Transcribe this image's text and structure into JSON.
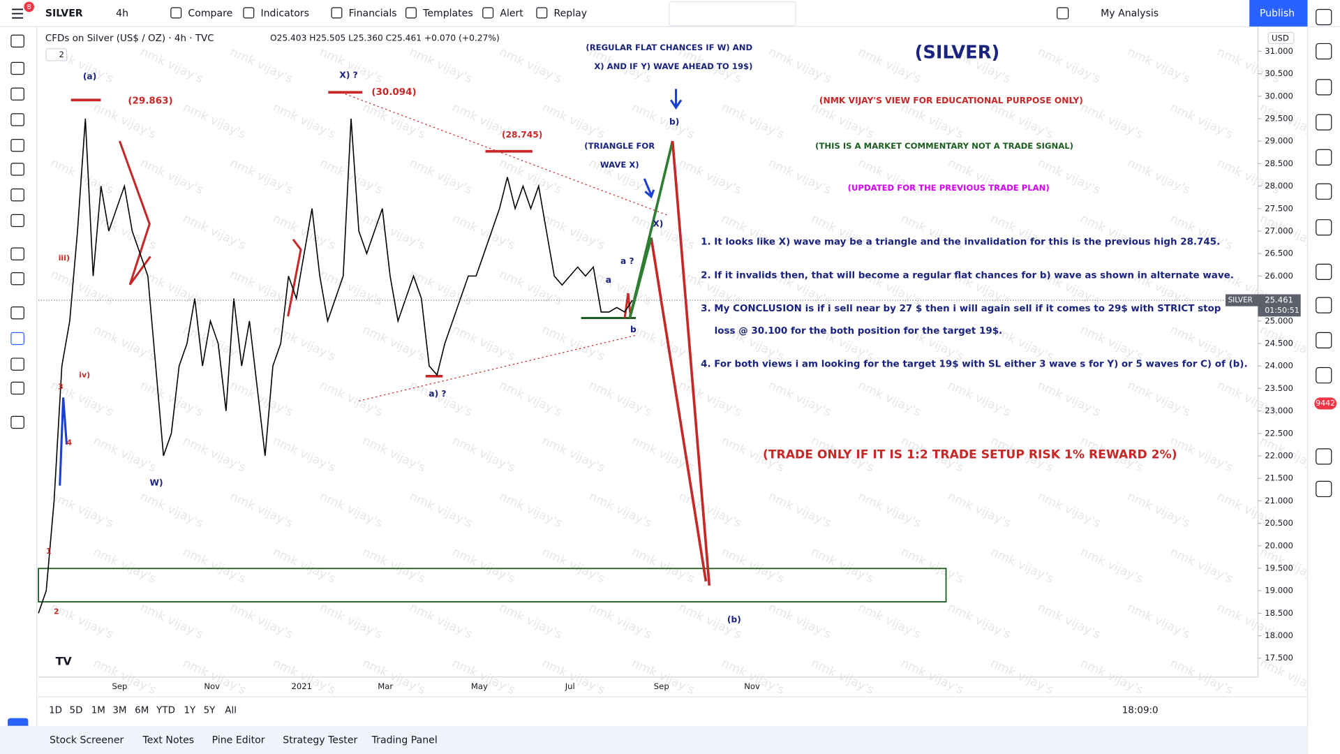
{
  "toolbar": {
    "symbol": "SILVER",
    "interval": "4h",
    "notification": "8",
    "items": [
      "Compare",
      "Indicators",
      "Financials",
      "Templates",
      "Alert",
      "Replay"
    ],
    "layout": "My Analysis",
    "publish": "Publish"
  },
  "legend": {
    "title": "CFDs on Silver (US$ / OZ) · 4h · TVC",
    "ohlc": "O25.403 H25.505 L25.360 C25.461 +0.070 (+0.27%)",
    "collapse": "2"
  },
  "chart": {
    "price": {
      "color": "#000000",
      "values": [
        18.5,
        19,
        21,
        24,
        25,
        27,
        29.5,
        26,
        28,
        27,
        27.5,
        28,
        27,
        26.5,
        26,
        24,
        22,
        22.5,
        24,
        24.5,
        25.5,
        24,
        25,
        24.5,
        23,
        25.5,
        24,
        25,
        23.5,
        22,
        24,
        24.5,
        26,
        25.5,
        26.5,
        27.5,
        26,
        25,
        25.5,
        26,
        29.5,
        27,
        26.5,
        27,
        27.5,
        26,
        25,
        25.5,
        26,
        25.5,
        24,
        23.8,
        24.5,
        25,
        25.5,
        26,
        26,
        26.5,
        27,
        27.5,
        28.2,
        27.5,
        28,
        27.5,
        28,
        27,
        26,
        25.8,
        26,
        26.2,
        26,
        26.2,
        25.2,
        25.2,
        25.3,
        25.2,
        25.461
      ]
    },
    "ylim": [
      17.08,
      31.55
    ],
    "yticks": [
      {
        "value": 17.5,
        "label": "17.500"
      },
      {
        "value": 18,
        "label": "18.000"
      },
      {
        "value": 18.5,
        "label": "18.500"
      },
      {
        "value": 19,
        "label": "19.000"
      },
      {
        "value": 19.5,
        "label": "19.500"
      },
      {
        "value": 20,
        "label": "20.000"
      },
      {
        "value": 20.5,
        "label": "20.500"
      },
      {
        "value": 21,
        "label": "21.000"
      },
      {
        "value": 21.5,
        "label": "21.500"
      },
      {
        "value": 22,
        "label": "22.000"
      },
      {
        "value": 22.5,
        "label": "22.500"
      },
      {
        "value": 23,
        "label": "23.000"
      },
      {
        "value": 23.5,
        "label": "23.500"
      },
      {
        "value": 24,
        "label": "24.000"
      },
      {
        "value": 24.5,
        "label": "24.500"
      },
      {
        "value": 25,
        "label": "25.000"
      },
      {
        "value": 25.5,
        "label": "25.500"
      },
      {
        "value": 26,
        "label": "26.000"
      },
      {
        "value": 26.5,
        "label": "26.500"
      },
      {
        "value": 27,
        "label": "27.000"
      },
      {
        "value": 27.5,
        "label": "27.500"
      },
      {
        "value": 28,
        "label": "28.000"
      },
      {
        "value": 28.5,
        "label": "28.500"
      },
      {
        "value": 29,
        "label": "29.000"
      },
      {
        "value": 29.5,
        "label": "29.500"
      },
      {
        "value": 30,
        "label": "30.000"
      },
      {
        "value": 30.5,
        "label": "30.500"
      },
      {
        "value": 31,
        "label": "31.000"
      }
    ],
    "currency": "USD",
    "xlabels": [
      "Sep",
      "Nov",
      "2021",
      "Mar",
      "May",
      "Jul",
      "Sep",
      "Nov"
    ],
    "last_price": {
      "symbol": "SILVER",
      "value": 25.461,
      "countdown": "01:50:51"
    },
    "watermark": "nmk vijay's",
    "annotations": [
      {
        "text": "(a)",
        "color": "#1a237e"
      },
      {
        "text": "(29.863)",
        "color": "#c62828"
      },
      {
        "text": "X) ?",
        "color": "#1a237e"
      },
      {
        "text": "(30.094)",
        "color": "#c62828"
      },
      {
        "text": "(28.745)",
        "color": "#c62828"
      },
      {
        "text": "(REGULAR FLAT CHANCES IF W) AND",
        "color": "#1a237e"
      },
      {
        "text": "X) AND IF Y) WAVE AHEAD TO 19$)",
        "color": "#1a237e"
      },
      {
        "text": "(SILVER)",
        "color": "#1a237e"
      },
      {
        "text": "(NMK VIJAY'S VIEW FOR EDUCATIONAL PURPOSE ONLY)",
        "color": "#c62828"
      },
      {
        "text": "(THIS IS A MARKET COMMENTARY NOT A TRADE SIGNAL)",
        "color": "#1b5e20"
      },
      {
        "text": "(UPDATED FOR THE PREVIOUS TRADE PLAN)",
        "color": "#d500f9"
      },
      {
        "text": "(TRIANGLE FOR",
        "color": "#1a237e"
      },
      {
        "text": "WAVE X)",
        "color": "#1a237e"
      },
      {
        "text": "b)",
        "color": "#1a237e"
      },
      {
        "text": "X)",
        "color": "#1a237e"
      },
      {
        "text": "a ?",
        "color": "#1a237e"
      },
      {
        "text": "a",
        "color": "#1a237e"
      },
      {
        "text": "b",
        "color": "#1a237e"
      },
      {
        "text": "a) ?",
        "color": "#1a237e"
      },
      {
        "text": "iii)",
        "color": "#c62828"
      },
      {
        "text": "iv)",
        "color": "#c62828"
      },
      {
        "text": "3",
        "color": "#c62828"
      },
      {
        "text": "4",
        "color": "#c62828"
      },
      {
        "text": "1",
        "color": "#c62828"
      },
      {
        "text": "2",
        "color": "#c62828"
      },
      {
        "text": "W)",
        "color": "#1a237e"
      },
      {
        "text": "(b)",
        "color": "#1a237e"
      },
      {
        "text": "1. It looks like X) wave may be a triangle and the invalidation for this is the previous high 28.745.",
        "color": "#1a237e"
      },
      {
        "text": "2. If it invalids then, that will become a regular flat chances for b) wave as shown in alternate wave.",
        "color": "#1a237e"
      },
      {
        "text": "3. My CONCLUSION is if i sell near by 27 $ then i will again sell if it comes to 29$ with STRICT stop",
        "color": "#1a237e"
      },
      {
        "text": "loss @ 30.100 for the both position for the target 19$.",
        "color": "#1a237e"
      },
      {
        "text": "4. For both views i am looking for the target 19$  with SL either 3 wave s for Y) or 5 waves for C) of (b).",
        "color": "#1a237e"
      },
      {
        "text": "(TRADE ONLY IF IT IS 1:2 TRADE SETUP RISK 1% REWARD 2%)",
        "color": "#c62828"
      }
    ]
  },
  "bottom": {
    "ranges": [
      "1D",
      "5D",
      "1M",
      "3M",
      "6M",
      "YTD",
      "1Y",
      "5Y",
      "All"
    ],
    "time": "18:09:0"
  },
  "tabs": [
    "Stock Screener",
    "Text Notes",
    "Pine Editor",
    "Strategy Tester",
    "Trading Panel"
  ],
  "badge": "9442"
}
